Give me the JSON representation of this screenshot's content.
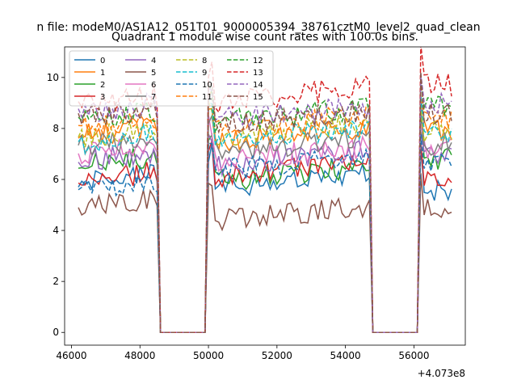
{
  "header": {
    "suptitle": "n file: modeM0/AS1A12_051T01_9000005394_38761cztM0_level2_quad_clean"
  },
  "chart_data": {
    "type": "line",
    "title": "Quadrant 1 module wise count rates with 100.0s bins.",
    "xlabel": "",
    "ylabel": "",
    "x_offset_label": "+4.073e8",
    "xlim": [
      45800,
      57500
    ],
    "ylim": [
      -0.5,
      11.2
    ],
    "xticks": [
      46000,
      48000,
      50000,
      52000,
      54000,
      56000
    ],
    "yticks": [
      0,
      2,
      4,
      6,
      8,
      10
    ],
    "grid": false,
    "legend": {
      "placement": "top-left",
      "columns": 4
    },
    "bin_size_s": 100.0,
    "segments": [
      {
        "x_start": 46200,
        "x_end": 48500
      },
      {
        "x_start": 50000,
        "x_end": 54700
      },
      {
        "x_start": 56200,
        "x_end": 57100
      }
    ],
    "gap_value": 0,
    "series": [
      {
        "name": "0",
        "color": "#1f77b4",
        "dashed": false,
        "levels": [
          5.8,
          5.8,
          5.6
        ]
      },
      {
        "name": "1",
        "color": "#ff7f0e",
        "dashed": false,
        "levels": [
          7.7,
          7.6,
          7.9
        ]
      },
      {
        "name": "2",
        "color": "#2ca02c",
        "dashed": false,
        "levels": [
          6.5,
          6.1,
          6.8
        ]
      },
      {
        "name": "3",
        "color": "#d62728",
        "dashed": false,
        "levels": [
          5.9,
          6.3,
          6.1
        ]
      },
      {
        "name": "4",
        "color": "#9467bd",
        "dashed": false,
        "levels": [
          6.7,
          6.7,
          6.9
        ]
      },
      {
        "name": "5",
        "color": "#8c564b",
        "dashed": false,
        "levels": [
          4.9,
          4.5,
          4.8
        ]
      },
      {
        "name": "6",
        "color": "#e377c2",
        "dashed": false,
        "levels": [
          7.0,
          6.9,
          7.2
        ]
      },
      {
        "name": "7",
        "color": "#7f7f7f",
        "dashed": false,
        "levels": [
          7.3,
          7.2,
          7.4
        ]
      },
      {
        "name": "8",
        "color": "#bcbd22",
        "dashed": true,
        "levels": [
          7.6,
          7.8,
          7.9
        ]
      },
      {
        "name": "9",
        "color": "#17becf",
        "dashed": true,
        "levels": [
          7.4,
          7.6,
          7.8
        ]
      },
      {
        "name": "10",
        "color": "#1f77b4",
        "dashed": true,
        "levels": [
          5.5,
          6.5,
          6.7
        ]
      },
      {
        "name": "11",
        "color": "#ff7f0e",
        "dashed": true,
        "levels": [
          8.0,
          8.1,
          8.4
        ]
      },
      {
        "name": "12",
        "color": "#2ca02c",
        "dashed": true,
        "levels": [
          8.3,
          8.4,
          8.9
        ]
      },
      {
        "name": "13",
        "color": "#d62728",
        "dashed": true,
        "levels": [
          8.9,
          9.2,
          9.7
        ]
      },
      {
        "name": "14",
        "color": "#9467bd",
        "dashed": true,
        "levels": [
          8.6,
          8.5,
          9.0
        ]
      },
      {
        "name": "15",
        "color": "#8c564b",
        "dashed": true,
        "levels": [
          8.4,
          8.3,
          8.6
        ]
      }
    ]
  }
}
